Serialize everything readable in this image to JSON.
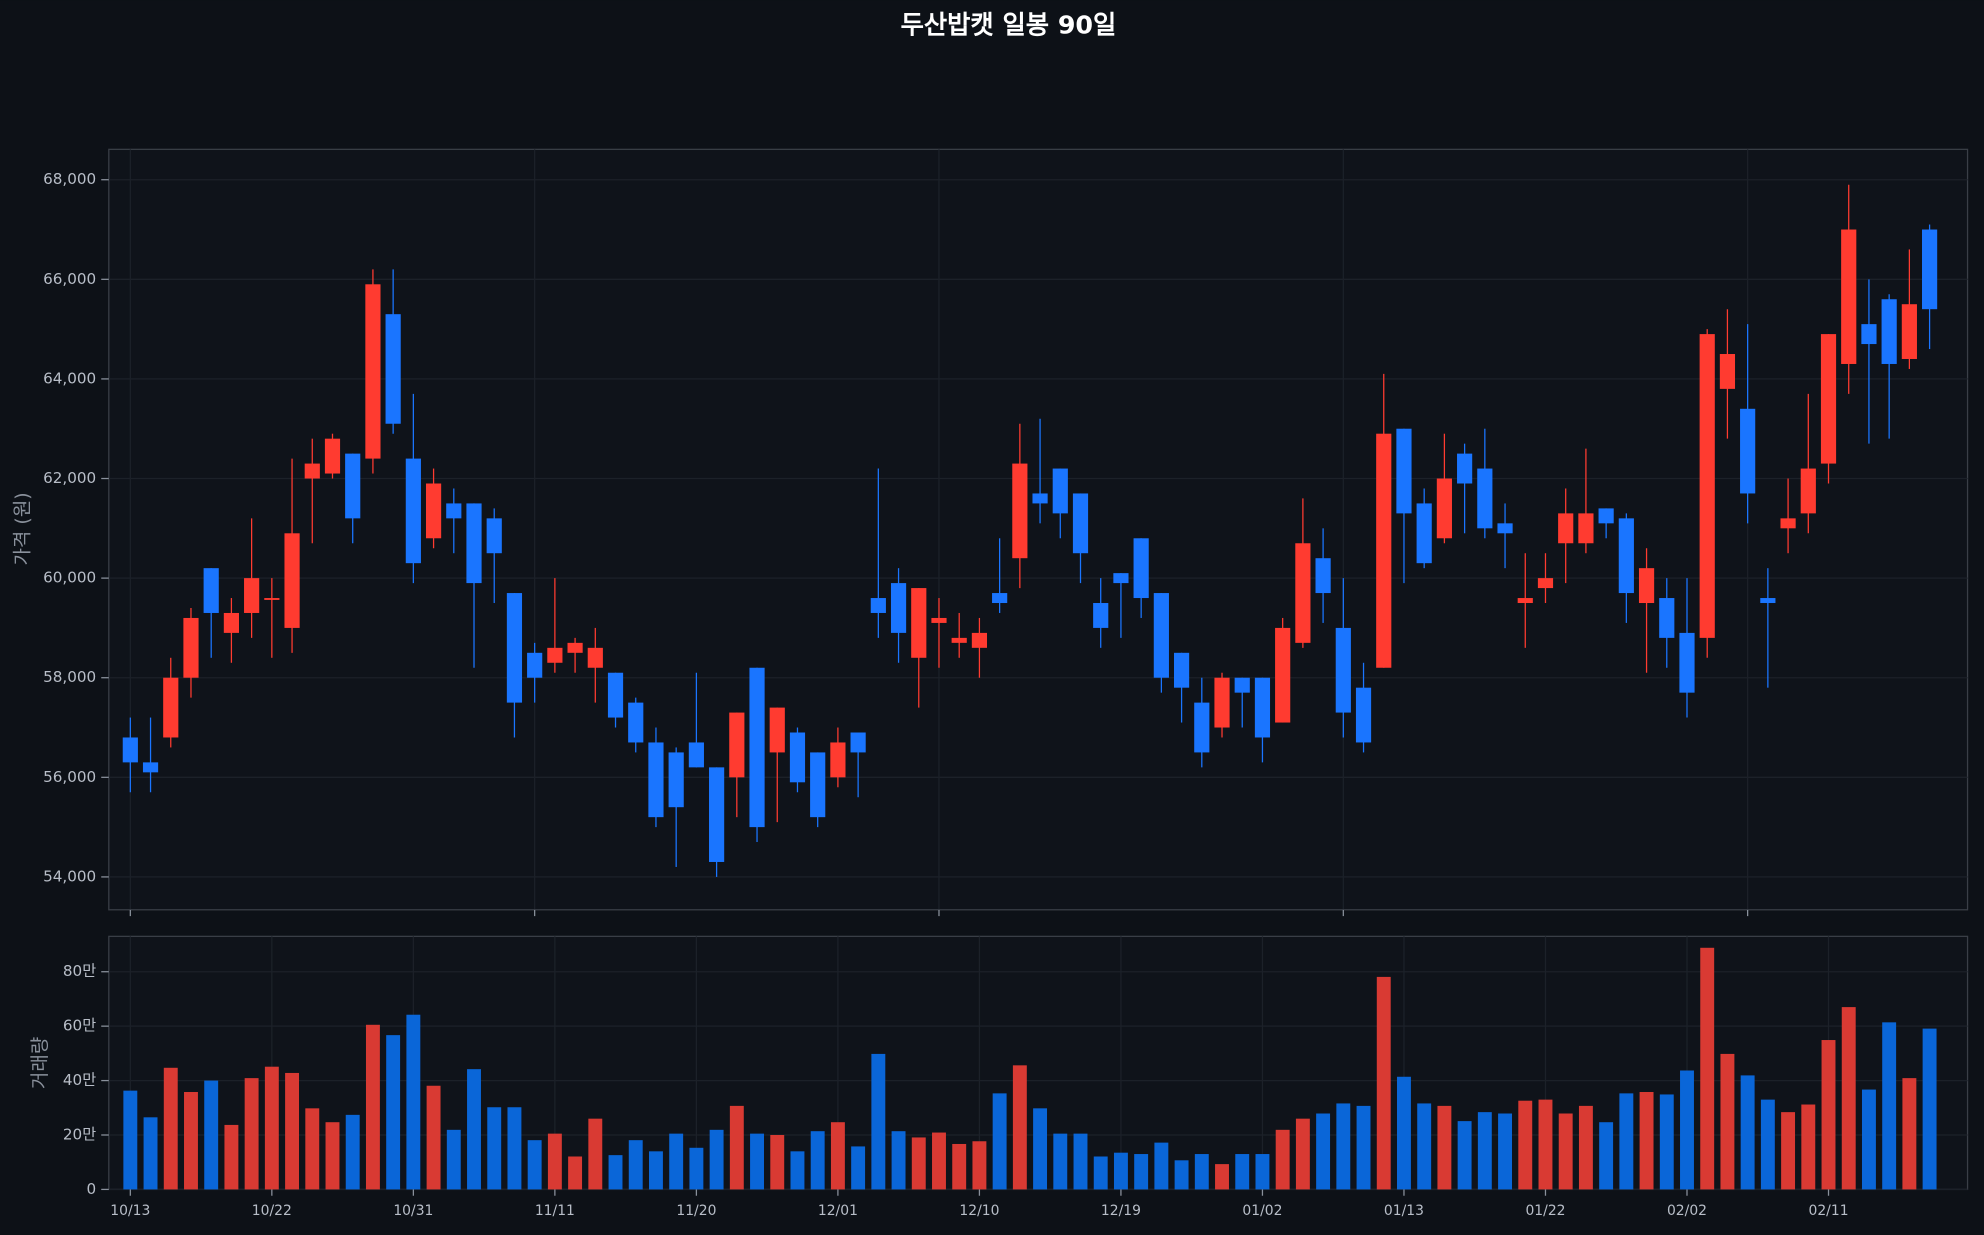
{
  "chart_data": {
    "type": "candlestick",
    "title": "두산밥캣 일봉 90일",
    "ylabel": "가격 (원)",
    "volume_label": "거래량",
    "categories": [
      "10/13",
      null,
      null,
      null,
      null,
      null,
      null,
      "10/22",
      null,
      null,
      null,
      null,
      null,
      null,
      "10/31",
      null,
      null,
      null,
      null,
      null,
      null,
      "11/11",
      null,
      null,
      null,
      null,
      null,
      null,
      "11/20",
      null,
      null,
      null,
      null,
      null,
      null,
      "12/01",
      null,
      null,
      null,
      null,
      null,
      null,
      "12/10",
      null,
      null,
      null,
      null,
      null,
      null,
      "12/19",
      null,
      null,
      null,
      null,
      null,
      null,
      "01/02",
      null,
      null,
      null,
      null,
      null,
      null,
      "01/13",
      null,
      null,
      null,
      null,
      null,
      null,
      "01/22",
      null,
      null,
      null,
      null,
      null,
      null,
      "02/02",
      null,
      null,
      null,
      null,
      null,
      null,
      "02/11",
      null,
      null,
      null,
      null,
      null
    ],
    "open": [
      56800,
      56300,
      56800,
      58000,
      60200,
      58900,
      59300,
      59600,
      59000,
      62000,
      62100,
      62500,
      62400,
      65300,
      62400,
      60800,
      61500,
      61500,
      61200,
      59700,
      58500,
      58300,
      58500,
      58200,
      58100,
      57500,
      56700,
      56500,
      56700,
      56200,
      56000,
      58200,
      56500,
      56900,
      56500,
      56000,
      56900,
      59600,
      59900,
      58400,
      59100,
      58700,
      58600,
      59700,
      60400,
      61700,
      62200,
      61700,
      59500,
      60100,
      60800,
      59700,
      58500,
      57500,
      57000,
      58000,
      58000,
      57100,
      58700,
      60400,
      59000,
      57800,
      58200,
      63000,
      61500,
      60800,
      62500,
      62200,
      61100,
      59500,
      59800,
      60700,
      60700,
      61400,
      61200,
      59500,
      59600,
      58900,
      58800,
      63800,
      63400,
      59600,
      61000,
      61300,
      62300,
      64300,
      65100,
      65600,
      64400,
      67000
    ],
    "high": [
      57200,
      57200,
      58400,
      59400,
      60200,
      59600,
      61200,
      60000,
      62400,
      62800,
      62900,
      62500,
      66200,
      66200,
      63700,
      62200,
      61800,
      61500,
      61400,
      59700,
      58700,
      60000,
      58800,
      59000,
      58100,
      57600,
      57000,
      56600,
      58100,
      56200,
      57300,
      58200,
      57400,
      57000,
      56500,
      57000,
      56900,
      62200,
      60200,
      59800,
      59600,
      59300,
      59200,
      60800,
      63100,
      63200,
      62200,
      61700,
      60000,
      60100,
      60800,
      59700,
      58500,
      58000,
      58100,
      58000,
      58000,
      59200,
      61600,
      61000,
      60000,
      58300,
      64100,
      63000,
      61800,
      62900,
      62700,
      63000,
      61500,
      60500,
      60500,
      61800,
      62600,
      61400,
      61300,
      60600,
      60000,
      60000,
      65000,
      65400,
      65100,
      60200,
      62000,
      63700,
      64900,
      67900,
      66000,
      65700,
      66600,
      67100
    ],
    "low": [
      55700,
      55700,
      56600,
      57600,
      58400,
      58300,
      58800,
      58400,
      58500,
      60700,
      62000,
      60700,
      62100,
      62900,
      59900,
      60600,
      60500,
      58200,
      59500,
      56800,
      57500,
      58100,
      58100,
      57500,
      57000,
      56500,
      55000,
      54200,
      56200,
      54000,
      55200,
      54700,
      55100,
      55700,
      55000,
      55800,
      55600,
      58800,
      58300,
      57400,
      58200,
      58400,
      58000,
      59300,
      59800,
      61100,
      60800,
      59900,
      58600,
      58800,
      59200,
      57700,
      57100,
      56200,
      56800,
      57000,
      56300,
      57100,
      58600,
      59100,
      56800,
      56500,
      58200,
      59900,
      60200,
      60700,
      60900,
      60800,
      60200,
      58600,
      59500,
      59900,
      60500,
      60800,
      59100,
      58100,
      58200,
      57200,
      58400,
      62800,
      61100,
      57800,
      60500,
      60900,
      61900,
      63700,
      62700,
      62800,
      64200,
      64600
    ],
    "close": [
      56300,
      56100,
      58000,
      59200,
      59300,
      59300,
      60000,
      59600,
      60900,
      62300,
      62800,
      61200,
      65900,
      63100,
      60300,
      61900,
      61200,
      59900,
      60500,
      57500,
      58000,
      58600,
      58700,
      58600,
      57200,
      56700,
      55200,
      55400,
      56200,
      54300,
      57300,
      55000,
      57400,
      55900,
      55200,
      56700,
      56500,
      59300,
      58900,
      59800,
      59200,
      58800,
      58900,
      59500,
      62300,
      61500,
      61300,
      60500,
      59000,
      59900,
      59600,
      58000,
      57800,
      56500,
      58000,
      57700,
      56800,
      59000,
      60700,
      59700,
      57300,
      56700,
      62900,
      61300,
      60300,
      62000,
      61900,
      61000,
      60900,
      59600,
      60000,
      61300,
      61300,
      61100,
      59700,
      60200,
      58800,
      57700,
      64900,
      64500,
      61700,
      59500,
      61200,
      62200,
      64900,
      67000,
      64700,
      64300,
      65500,
      65400
    ],
    "volume": [
      363000,
      265000,
      447000,
      358000,
      400000,
      237000,
      409000,
      451000,
      428000,
      298000,
      247000,
      274000,
      605000,
      567000,
      642000,
      381000,
      219000,
      442000,
      302000,
      302000,
      181000,
      205000,
      121000,
      260000,
      126000,
      181000,
      140000,
      205000,
      153000,
      219000,
      307000,
      205000,
      200000,
      140000,
      214000,
      247000,
      158000,
      498000,
      214000,
      191000,
      209000,
      167000,
      177000,
      353000,
      456000,
      298000,
      205000,
      205000,
      121000,
      135000,
      130000,
      172000,
      107000,
      130000,
      93000,
      130000,
      130000,
      219000,
      260000,
      279000,
      316000,
      307000,
      781000,
      414000,
      316000,
      307000,
      251000,
      284000,
      279000,
      326000,
      330000,
      279000,
      307000,
      247000,
      353000,
      358000,
      349000,
      437000,
      888000,
      498000,
      419000,
      330000,
      284000,
      312000,
      549000,
      670000,
      367000,
      614000,
      409000,
      591000
    ],
    "ylim": [
      53340,
      68610
    ],
    "yticks": [
      {
        "value": 54000,
        "label": "54,000"
      },
      {
        "value": 56000,
        "label": "56,000"
      },
      {
        "value": 58000,
        "label": "58,000"
      },
      {
        "value": 60000,
        "label": "60,000"
      },
      {
        "value": 62000,
        "label": "62,000"
      },
      {
        "value": 64000,
        "label": "64,000"
      },
      {
        "value": 66000,
        "label": "66,000"
      },
      {
        "value": 68000,
        "label": "68,000"
      }
    ],
    "volume_ylim": [
      0,
      930000
    ],
    "volume_yticks": [
      0,
      {
        "value": 200000,
        "label": "20만"
      },
      {
        "value": 400000,
        "label": "40만"
      },
      {
        "value": 600000,
        "label": "60만"
      },
      {
        "value": 800000,
        "label": "80만"
      }
    ],
    "up_color": "#ff3b30",
    "down_color": "#1a75ff",
    "volume_up_color": "#d93a33",
    "volume_down_color": "#0a66d8",
    "grid": true
  }
}
